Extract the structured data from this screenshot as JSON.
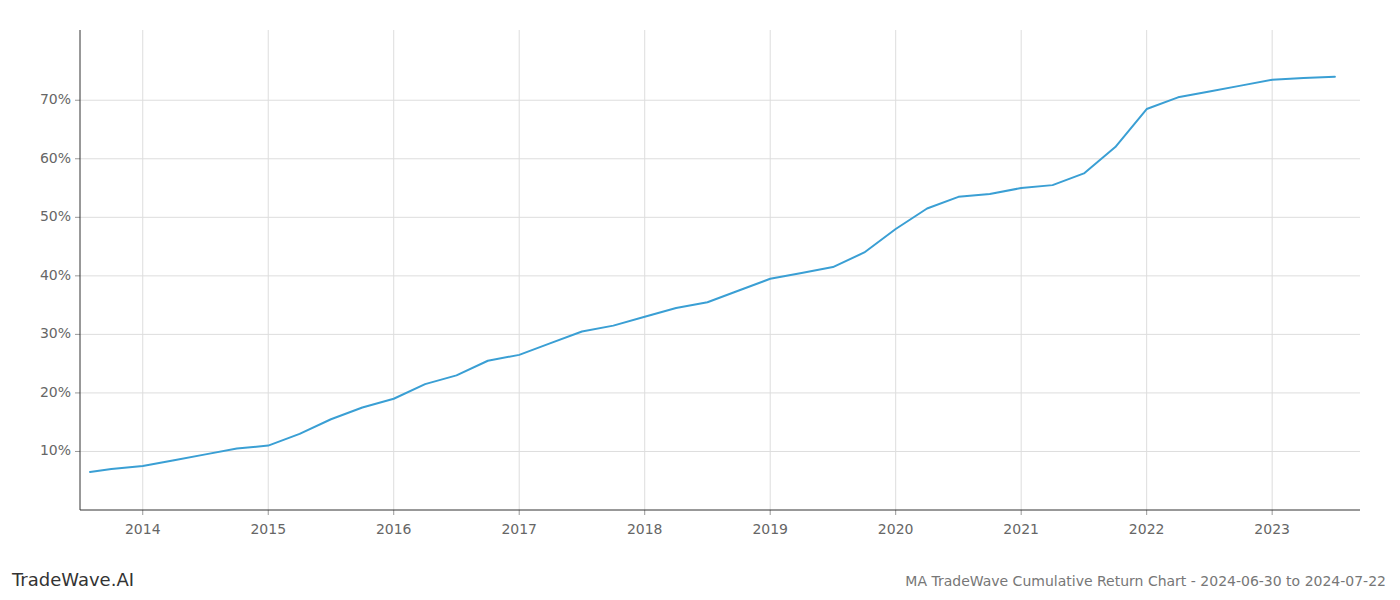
{
  "chart_data": {
    "type": "line",
    "title": "MA TradeWave Cumulative Return Chart - 2024-06-30 to 2024-07-22",
    "annotations": [
      "TradeWave.AI"
    ],
    "x": [
      2013.58,
      2013.75,
      2014.0,
      2014.25,
      2014.5,
      2014.75,
      2015.0,
      2015.25,
      2015.5,
      2015.75,
      2016.0,
      2016.25,
      2016.5,
      2016.75,
      2017.0,
      2017.25,
      2017.5,
      2017.75,
      2018.0,
      2018.25,
      2018.5,
      2018.75,
      2019.0,
      2019.25,
      2019.5,
      2019.75,
      2020.0,
      2020.25,
      2020.5,
      2020.75,
      2021.0,
      2021.25,
      2021.5,
      2021.75,
      2022.0,
      2022.25,
      2022.5,
      2022.75,
      2023.0,
      2023.25,
      2023.5
    ],
    "values": [
      6.5,
      7.0,
      7.5,
      8.5,
      9.5,
      10.5,
      11.0,
      13.0,
      15.5,
      17.5,
      19.0,
      21.5,
      23.0,
      25.5,
      26.5,
      28.5,
      30.5,
      31.5,
      33.0,
      34.5,
      35.5,
      37.5,
      39.5,
      40.5,
      41.5,
      44.0,
      48.0,
      51.5,
      53.5,
      54.0,
      55.0,
      55.5,
      57.5,
      62.0,
      68.5,
      70.5,
      71.5,
      72.5,
      73.5,
      73.8,
      74.0
    ],
    "color": "#3a9fd4",
    "xlim": [
      2013.5,
      2023.7
    ],
    "ylim": [
      0,
      82
    ],
    "xticks": [
      2014,
      2015,
      2016,
      2017,
      2018,
      2019,
      2020,
      2021,
      2022,
      2023
    ],
    "yticks": [
      {
        "value": 10,
        "label": "10%"
      },
      {
        "value": 20,
        "label": "20%"
      },
      {
        "value": 30,
        "label": "30%"
      },
      {
        "value": 40,
        "label": "40%"
      },
      {
        "value": 50,
        "label": "50%"
      },
      {
        "value": 60,
        "label": "60%"
      },
      {
        "value": 70,
        "label": "70%"
      }
    ],
    "grid": true
  }
}
